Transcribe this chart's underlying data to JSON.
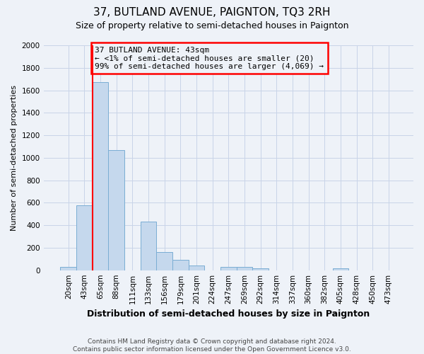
{
  "title": "37, BUTLAND AVENUE, PAIGNTON, TQ3 2RH",
  "subtitle": "Size of property relative to semi-detached houses in Paignton",
  "xlabel": "Distribution of semi-detached houses by size in Paignton",
  "ylabel": "Number of semi-detached properties",
  "footer_line1": "Contains HM Land Registry data © Crown copyright and database right 2024.",
  "footer_line2": "Contains public sector information licensed under the Open Government Licence v3.0.",
  "bin_labels": [
    "20sqm",
    "43sqm",
    "65sqm",
    "88sqm",
    "111sqm",
    "133sqm",
    "156sqm",
    "179sqm",
    "201sqm",
    "224sqm",
    "247sqm",
    "269sqm",
    "292sqm",
    "314sqm",
    "337sqm",
    "360sqm",
    "382sqm",
    "405sqm",
    "428sqm",
    "450sqm",
    "473sqm"
  ],
  "bar_values": [
    28,
    580,
    1670,
    1070,
    0,
    430,
    160,
    90,
    40,
    0,
    28,
    28,
    18,
    0,
    0,
    0,
    0,
    14,
    0,
    0,
    0
  ],
  "bar_color": "#c5d8ed",
  "bar_edge_color": "#7aadd4",
  "ylim": [
    0,
    2000
  ],
  "yticks": [
    0,
    200,
    400,
    600,
    800,
    1000,
    1200,
    1400,
    1600,
    1800,
    2000
  ],
  "property_bin_index": 1,
  "property_line_label": "37 BUTLAND AVENUE: 43sqm",
  "annotation_line1": "← <1% of semi-detached houses are smaller (20)",
  "annotation_line2": "99% of semi-detached houses are larger (4,069) →",
  "line_color": "red",
  "box_edge_color": "red",
  "grid_color": "#c8d4e8",
  "background_color": "#eef2f8",
  "plot_bg_color": "#eef2f8",
  "title_fontsize": 11,
  "subtitle_fontsize": 9,
  "ylabel_fontsize": 8,
  "xlabel_fontsize": 9,
  "tick_fontsize": 7.5,
  "annot_fontsize": 8,
  "footer_fontsize": 6.5
}
